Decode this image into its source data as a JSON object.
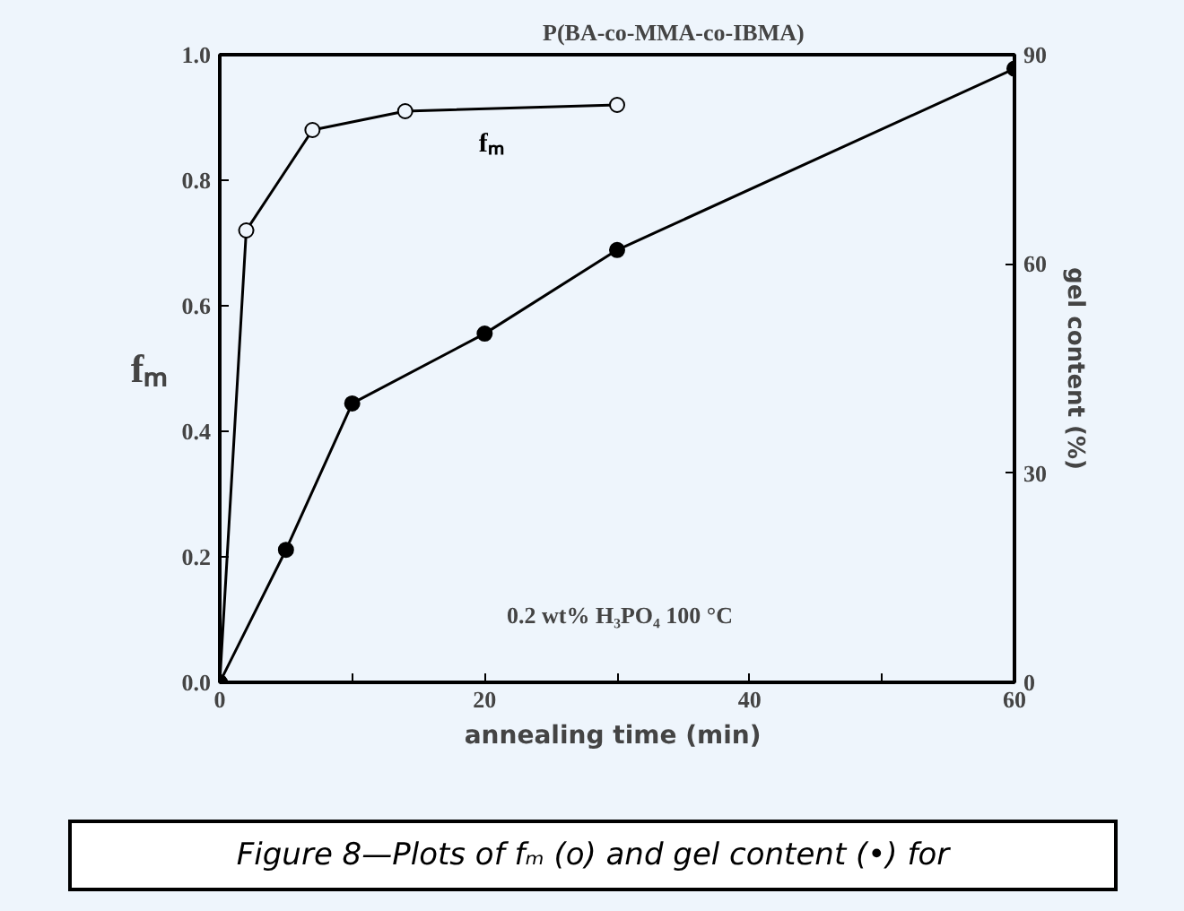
{
  "chart_data": {
    "type": "line",
    "title": "P(BA-co-MMA-co-IBMA)",
    "xlabel": "annealing time  (min)",
    "ylabel": "fₘ",
    "y2label": "gel content (%)",
    "x": [
      0,
      2,
      7,
      14,
      30
    ],
    "series": [
      {
        "name": "fₘ",
        "color": "#000000",
        "values": [
          0,
          0.72,
          0.88,
          0.91,
          0.92
        ]
      },
      {
        "color": "#000000",
        "axis": "y2",
        "x": [
          0,
          5,
          10,
          20,
          30,
          60
        ],
        "values": [
          0,
          19,
          40,
          50,
          62,
          88
        ]
      }
    ],
    "xlim": [
      0,
      60
    ],
    "xticks": [
      0,
      {
        "value": 10,
        "label": null
      },
      20,
      {
        "value": 30,
        "label": null
      },
      40,
      {
        "value": 50,
        "label": null
      },
      60
    ],
    "ylim": [
      0,
      1.0
    ],
    "yticks": [
      {
        "value": 0,
        "label": "0.0"
      },
      {
        "value": 0.2,
        "label": "0.2"
      },
      {
        "value": 0.4,
        "label": "0.4"
      },
      {
        "value": 0.6,
        "label": "0.6"
      },
      {
        "value": 0.8,
        "label": "0.8"
      },
      {
        "value": 1.0,
        "label": "1.0"
      }
    ],
    "y2lim": [
      0,
      90
    ],
    "y2ticks": [
      0,
      30,
      60,
      90
    ],
    "marker": "circle",
    "line_style": "solid",
    "grid": false,
    "annotations": [
      "0.2 wt% H₃PO₄    100 °C",
      "Figure 8—Plots of fₘ (o) and gel content (•) for"
    ]
  }
}
